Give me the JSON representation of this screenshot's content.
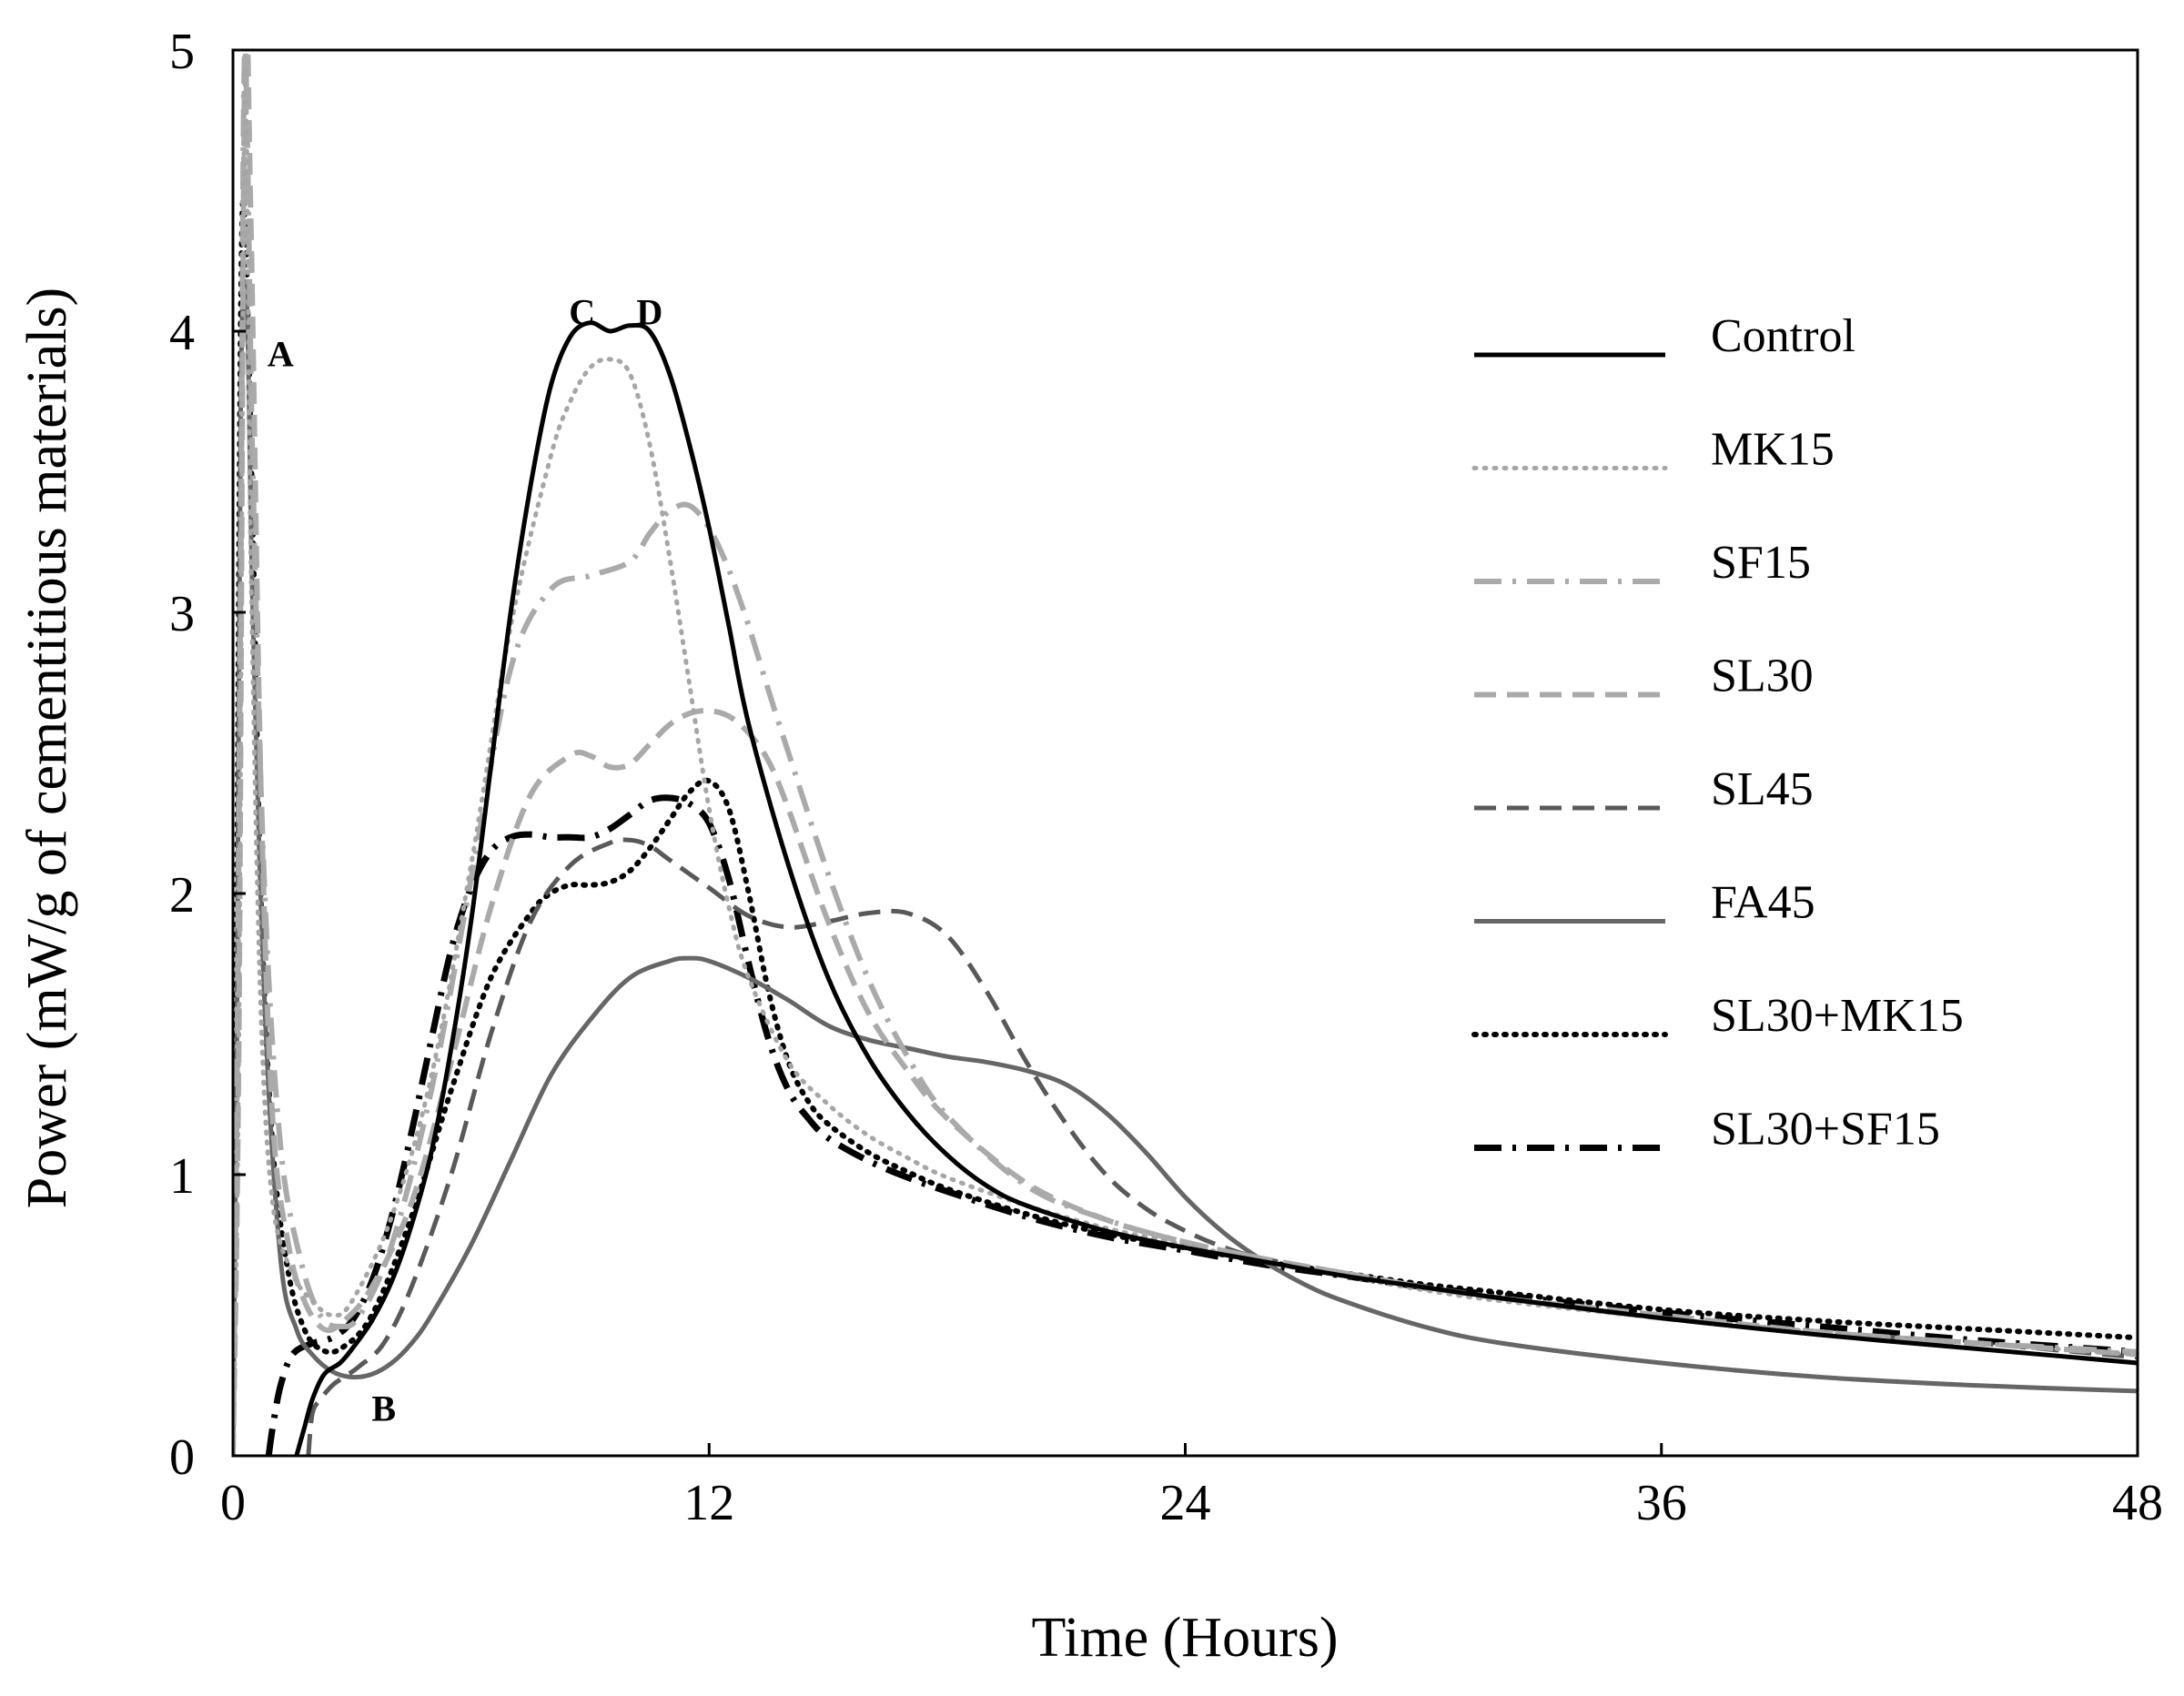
{
  "chart_data": {
    "type": "line",
    "title": "",
    "xlabel": "Time (Hours)",
    "ylabel": "Power (mW/g of cementitious materials)",
    "xlim": [
      0,
      48
    ],
    "ylim": [
      0,
      5
    ],
    "xticks": [
      0,
      12,
      24,
      36,
      48
    ],
    "yticks": [
      0,
      1,
      2,
      3,
      4,
      5
    ],
    "grid": false,
    "legend_position": "right",
    "annotations": [
      {
        "label": "A",
        "x": 1.2,
        "y": 3.92
      },
      {
        "label": "B",
        "x": 3.8,
        "y": 0.17
      },
      {
        "label": "C",
        "x": 8.8,
        "y": 4.07
      },
      {
        "label": "D",
        "x": 10.5,
        "y": 4.07
      }
    ],
    "series": [
      {
        "name": "Control",
        "color": "#000000",
        "dash": "solid",
        "width": 5,
        "x": [
          1.6,
          1.8,
          2.0,
          2.3,
          2.7,
          3.0,
          3.5,
          4.0,
          4.5,
          5.0,
          5.5,
          6.0,
          6.5,
          7.0,
          7.5,
          8.0,
          8.5,
          9.0,
          9.5,
          10.0,
          10.5,
          11.0,
          11.5,
          12.0,
          12.5,
          13.0,
          14.0,
          15.0,
          16.0,
          17.0,
          18.0,
          19.0,
          20.0,
          22.0,
          24.0,
          26.0,
          28.0,
          30.0,
          32.0,
          36.0,
          40.0,
          44.0,
          48.0
        ],
        "y": [
          0.0,
          0.1,
          0.2,
          0.29,
          0.33,
          0.38,
          0.48,
          0.62,
          0.82,
          1.08,
          1.45,
          1.9,
          2.45,
          3.0,
          3.45,
          3.8,
          3.98,
          4.03,
          4.0,
          4.02,
          4.0,
          3.85,
          3.6,
          3.3,
          2.95,
          2.6,
          2.1,
          1.7,
          1.42,
          1.22,
          1.07,
          0.96,
          0.89,
          0.8,
          0.74,
          0.69,
          0.64,
          0.6,
          0.56,
          0.49,
          0.43,
          0.38,
          0.33
        ]
      },
      {
        "name": "MK15",
        "color": "#a6a6a6",
        "dash": "dotted",
        "width": 5,
        "x": [
          0.0,
          0.15,
          0.3,
          0.45,
          0.7,
          1.0,
          1.5,
          2.0,
          2.5,
          3.0,
          4.0,
          5.0,
          6.0,
          7.0,
          8.0,
          8.5,
          9.0,
          9.5,
          10.0,
          10.5,
          11.0,
          11.5,
          12.0,
          12.5,
          13.0,
          14.0,
          15.0,
          16.0,
          17.0,
          18.0,
          20.0,
          22.0,
          24.0,
          26.0,
          28.0,
          30.0,
          32.0,
          36.0,
          40.0,
          44.0,
          48.0
        ],
        "y": [
          0.0,
          1.5,
          4.9,
          3.2,
          1.6,
          0.9,
          0.65,
          0.55,
          0.5,
          0.55,
          0.85,
          1.35,
          2.1,
          2.95,
          3.55,
          3.75,
          3.87,
          3.9,
          3.85,
          3.6,
          3.2,
          2.75,
          2.3,
          1.95,
          1.7,
          1.4,
          1.25,
          1.14,
          1.06,
          0.99,
          0.89,
          0.81,
          0.75,
          0.69,
          0.64,
          0.59,
          0.55,
          0.49,
          0.44,
          0.4,
          0.36
        ]
      },
      {
        "name": "SF15",
        "color": "#aaaaaa",
        "dash": "dashdot",
        "width": 6,
        "x": [
          0.0,
          0.1,
          0.2,
          0.3,
          0.5,
          0.8,
          1.2,
          1.7,
          2.2,
          2.7,
          3.2,
          4.0,
          5.0,
          6.0,
          7.0,
          8.0,
          9.0,
          10.0,
          10.5,
          11.0,
          11.5,
          12.0,
          12.5,
          13.0,
          13.5,
          14.0,
          15.0,
          16.0,
          17.0,
          18.0,
          20.0,
          22.0,
          24.0,
          26.0,
          28.0,
          30.0,
          32.0,
          36.0,
          40.0,
          44.0,
          48.0
        ],
        "y": [
          0.0,
          1.3,
          3.2,
          5.0,
          3.5,
          2.0,
          1.1,
          0.7,
          0.5,
          0.46,
          0.5,
          0.75,
          1.3,
          2.05,
          2.8,
          3.08,
          3.13,
          3.18,
          3.28,
          3.36,
          3.38,
          3.3,
          3.15,
          2.95,
          2.72,
          2.5,
          2.07,
          1.7,
          1.42,
          1.21,
          0.96,
          0.84,
          0.76,
          0.7,
          0.65,
          0.6,
          0.56,
          0.49,
          0.44,
          0.4,
          0.37
        ]
      },
      {
        "name": "SL30",
        "color": "#aaaaaa",
        "dash": "dashed",
        "width": 6,
        "x": [
          0.0,
          0.15,
          0.3,
          0.45,
          0.7,
          1.0,
          1.4,
          1.8,
          2.3,
          2.8,
          3.5,
          4.5,
          5.5,
          6.5,
          7.5,
          8.5,
          9.0,
          9.5,
          10.0,
          10.5,
          11.0,
          11.5,
          12.0,
          12.5,
          13.0,
          13.5,
          14.0,
          15.0,
          16.0,
          17.0,
          18.0,
          20.0,
          22.0,
          24.0,
          26.0,
          28.0,
          30.0,
          32.0,
          36.0,
          40.0,
          44.0,
          48.0
        ],
        "y": [
          0.0,
          1.5,
          5.0,
          4.4,
          2.4,
          1.2,
          0.75,
          0.55,
          0.45,
          0.48,
          0.6,
          0.9,
          1.4,
          1.95,
          2.35,
          2.49,
          2.49,
          2.45,
          2.46,
          2.53,
          2.6,
          2.64,
          2.65,
          2.63,
          2.57,
          2.47,
          2.3,
          1.9,
          1.58,
          1.37,
          1.2,
          0.97,
          0.84,
          0.76,
          0.7,
          0.65,
          0.6,
          0.56,
          0.5,
          0.44,
          0.4,
          0.36
        ]
      },
      {
        "name": "SL45",
        "color": "#595959",
        "dash": "dashed",
        "width": 5,
        "x": [
          1.9,
          2.0,
          2.2,
          2.5,
          2.8,
          3.2,
          3.8,
          4.5,
          5.5,
          6.5,
          7.5,
          8.5,
          9.5,
          10.0,
          10.5,
          11.0,
          12.0,
          13.0,
          14.0,
          15.0,
          16.0,
          17.0,
          18.0,
          19.0,
          20.0,
          21.0,
          22.0,
          23.0,
          24.0,
          25.0,
          26.0,
          28.0,
          30.0,
          32.0,
          36.0,
          40.0,
          44.0,
          48.0
        ],
        "y": [
          0.0,
          0.15,
          0.2,
          0.25,
          0.28,
          0.32,
          0.4,
          0.6,
          1.0,
          1.5,
          1.9,
          2.1,
          2.18,
          2.19,
          2.17,
          2.12,
          2.02,
          1.92,
          1.88,
          1.9,
          1.93,
          1.93,
          1.85,
          1.65,
          1.4,
          1.18,
          1.0,
          0.88,
          0.8,
          0.74,
          0.7,
          0.65,
          0.6,
          0.56,
          0.49,
          0.44,
          0.4,
          0.35
        ]
      },
      {
        "name": "FA45",
        "color": "#666666",
        "dash": "solid",
        "width": 5,
        "x": [
          0.0,
          0.1,
          0.2,
          0.35,
          0.5,
          0.8,
          1.2,
          1.6,
          2.0,
          2.5,
          3.0,
          3.5,
          4.0,
          4.5,
          5.0,
          6.0,
          7.0,
          8.0,
          9.0,
          10.0,
          11.0,
          11.5,
          12.0,
          13.0,
          14.0,
          15.0,
          16.0,
          17.0,
          18.0,
          19.0,
          20.0,
          21.0,
          22.0,
          23.0,
          24.0,
          25.0,
          26.0,
          27.0,
          28.0,
          30.0,
          32.0,
          36.0,
          40.0,
          44.0,
          48.0
        ],
        "y": [
          0.0,
          1.5,
          3.8,
          4.1,
          3.0,
          1.6,
          0.7,
          0.45,
          0.36,
          0.3,
          0.28,
          0.29,
          0.33,
          0.4,
          0.5,
          0.75,
          1.05,
          1.35,
          1.55,
          1.7,
          1.76,
          1.77,
          1.76,
          1.7,
          1.62,
          1.53,
          1.48,
          1.45,
          1.42,
          1.4,
          1.37,
          1.32,
          1.22,
          1.08,
          0.92,
          0.79,
          0.69,
          0.61,
          0.55,
          0.46,
          0.4,
          0.33,
          0.28,
          0.25,
          0.23
        ]
      },
      {
        "name": "SL30+MK15",
        "color": "#000000",
        "dash": "dotted",
        "width": 6,
        "x": [
          0.0,
          0.1,
          0.2,
          0.3,
          0.5,
          0.7,
          1.0,
          1.4,
          1.8,
          2.2,
          2.7,
          3.5,
          4.5,
          5.5,
          6.5,
          7.5,
          8.0,
          8.5,
          9.0,
          9.5,
          10.0,
          10.5,
          11.0,
          11.5,
          12.0,
          12.5,
          13.0,
          13.5,
          14.0,
          14.5,
          15.0,
          16.0,
          17.0,
          18.0,
          20.0,
          22.0,
          24.0,
          26.0,
          28.0,
          30.0,
          32.0,
          36.0,
          40.0,
          44.0,
          48.0
        ],
        "y": [
          0.0,
          2.0,
          4.1,
          4.4,
          3.3,
          2.0,
          1.1,
          0.65,
          0.45,
          0.38,
          0.38,
          0.5,
          0.85,
          1.3,
          1.7,
          1.93,
          2.0,
          2.03,
          2.03,
          2.04,
          2.08,
          2.16,
          2.26,
          2.36,
          2.4,
          2.3,
          2.0,
          1.65,
          1.4,
          1.26,
          1.18,
          1.08,
          1.01,
          0.95,
          0.86,
          0.79,
          0.74,
          0.69,
          0.65,
          0.61,
          0.58,
          0.52,
          0.48,
          0.45,
          0.42
        ]
      },
      {
        "name": "SL30+SF15",
        "color": "#000000",
        "dash": "dashdot",
        "width": 7,
        "x": [
          0.9,
          1.0,
          1.2,
          1.5,
          2.0,
          2.5,
          3.0,
          3.5,
          4.0,
          4.5,
          5.0,
          5.5,
          6.0,
          6.5,
          7.0,
          7.5,
          8.0,
          8.5,
          9.0,
          9.5,
          10.0,
          10.5,
          11.0,
          11.5,
          12.0,
          12.5,
          13.0,
          13.5,
          14.0,
          14.5,
          15.0,
          16.0,
          17.0,
          18.0,
          20.0,
          22.0,
          24.0,
          26.0,
          28.0,
          30.0,
          32.0,
          36.0,
          40.0,
          44.0,
          48.0
        ],
        "y": [
          0.0,
          0.1,
          0.25,
          0.36,
          0.4,
          0.42,
          0.48,
          0.62,
          0.85,
          1.15,
          1.48,
          1.8,
          2.02,
          2.15,
          2.2,
          2.21,
          2.2,
          2.2,
          2.2,
          2.23,
          2.28,
          2.33,
          2.34,
          2.32,
          2.25,
          2.05,
          1.75,
          1.48,
          1.3,
          1.2,
          1.13,
          1.05,
          0.99,
          0.94,
          0.85,
          0.78,
          0.73,
          0.68,
          0.64,
          0.6,
          0.57,
          0.51,
          0.46,
          0.41,
          0.37
        ]
      }
    ]
  }
}
